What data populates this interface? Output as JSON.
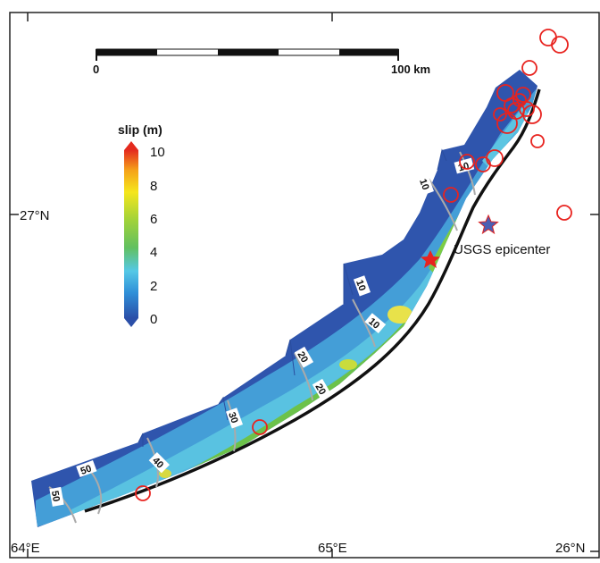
{
  "map": {
    "axes": {
      "lon_left": "64°E",
      "lon_mid": "65°E",
      "lat_mid": "27°N",
      "lat_bottom": "26°N"
    },
    "scale_bar": {
      "start_label": "0",
      "end_label": "100 km",
      "segments": 5
    },
    "colorbar": {
      "title": "slip (m)",
      "ticks": [
        "10",
        "8",
        "6",
        "4",
        "2",
        "0"
      ],
      "range": [
        0,
        10
      ],
      "colors": [
        "#2b4fa8",
        "#2f8fd8",
        "#55c8e6",
        "#62c060",
        "#9fd23a",
        "#f5e61c",
        "#f5a21a",
        "#e42a1e"
      ]
    },
    "slip_contours": [
      "10",
      "10",
      "10",
      "10",
      "20",
      "20",
      "30",
      "40",
      "50",
      "50"
    ],
    "epicenter": {
      "label": "USGS epicenter",
      "color": "#4a5fb3",
      "stroke": "#d22"
    },
    "hypocenter_star": {
      "color": "#e8231f"
    },
    "aftershocks": {
      "color": "#e8231f",
      "count": 27
    }
  }
}
